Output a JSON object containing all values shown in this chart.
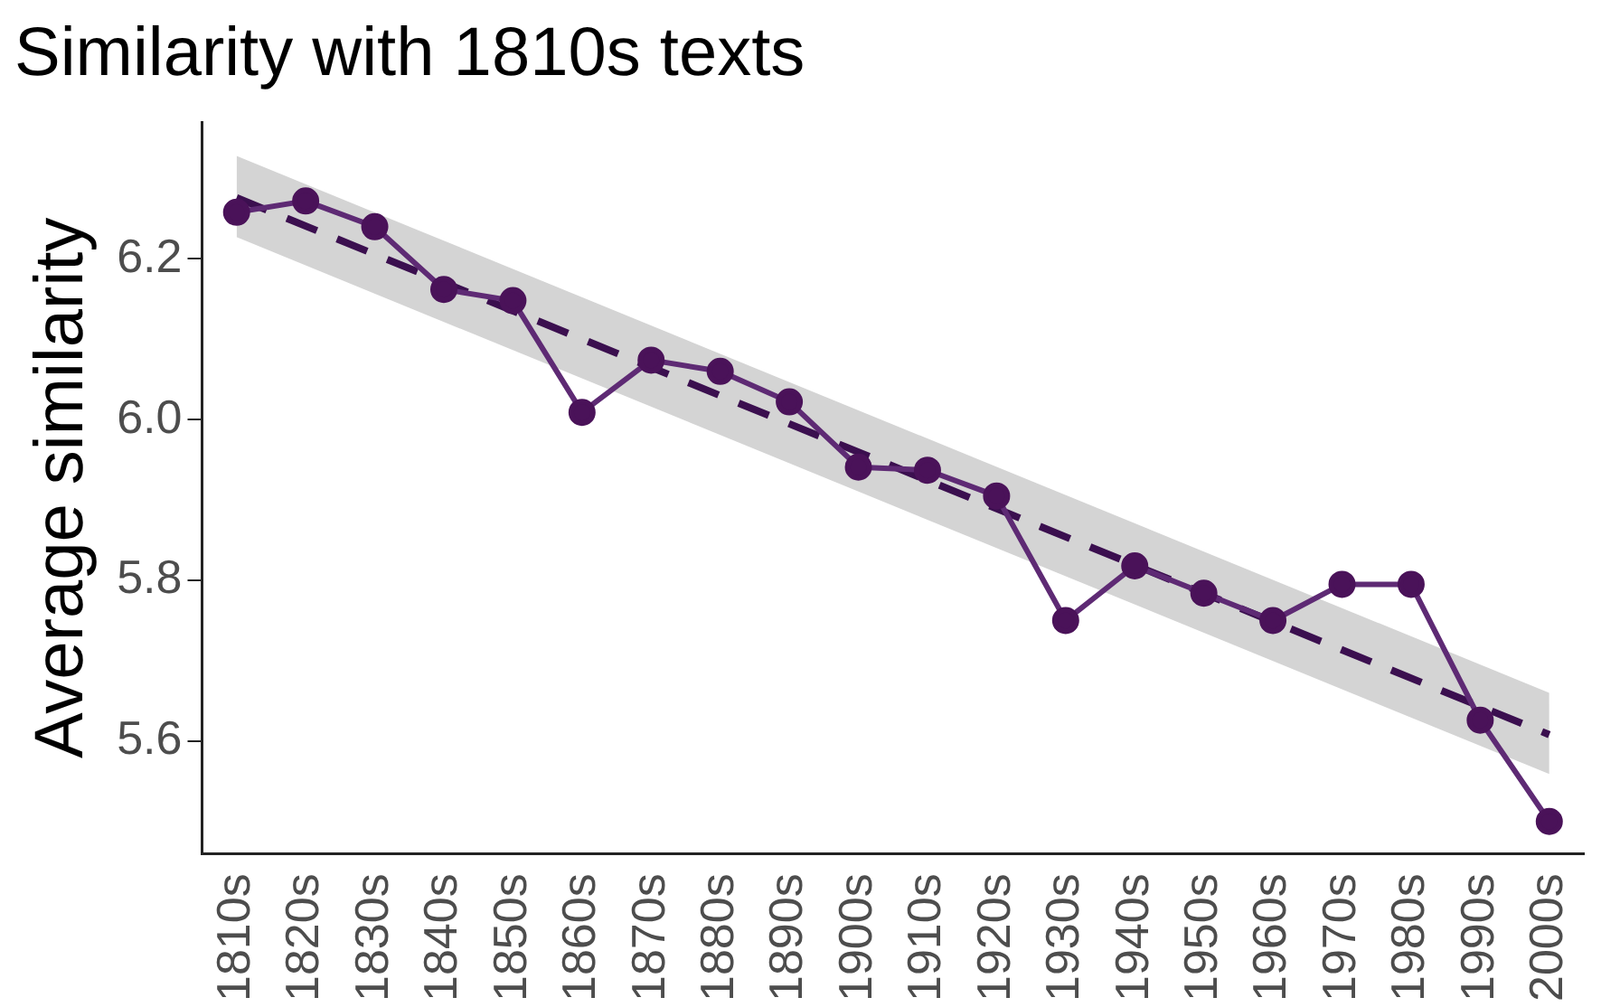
{
  "chart_data": {
    "type": "line",
    "title": "Similarity with 1810s texts",
    "ylabel": "Average similarity",
    "categories": [
      "1810s",
      "1820s",
      "1830s",
      "1840s",
      "1850s",
      "1860s",
      "1870s",
      "1880s",
      "1890s",
      "1900s",
      "1910s",
      "1920s",
      "1930s",
      "1940s",
      "1950s",
      "1960s",
      "1970s",
      "1980s",
      "1990s",
      "2000s"
    ],
    "series": [
      {
        "type": "line",
        "color": "#5e2a74",
        "marker": "circle",
        "line_style": "solid",
        "values": [
          6.258,
          6.272,
          6.24,
          6.162,
          6.148,
          6.009,
          6.074,
          6.06,
          6.022,
          5.941,
          5.937,
          5.905,
          5.75,
          5.818,
          5.784,
          5.75,
          5.795,
          5.795,
          5.626,
          5.5
        ]
      },
      {
        "type": "line",
        "color": "#3b0f4f",
        "marker": "none",
        "line_style": "dashed",
        "x": [
          "1810s",
          "2000s"
        ],
        "values": [
          6.276,
          5.608
        ],
        "lower": [
          6.227,
          5.559
        ],
        "upper": [
          6.328,
          5.66
        ]
      }
    ],
    "ylim": [
      5.46,
      6.37
    ],
    "yticks": [
      5.6,
      5.8,
      {
        "value": 6,
        "label": "6.0"
      },
      6.2
    ],
    "grid": false,
    "legend": false
  }
}
